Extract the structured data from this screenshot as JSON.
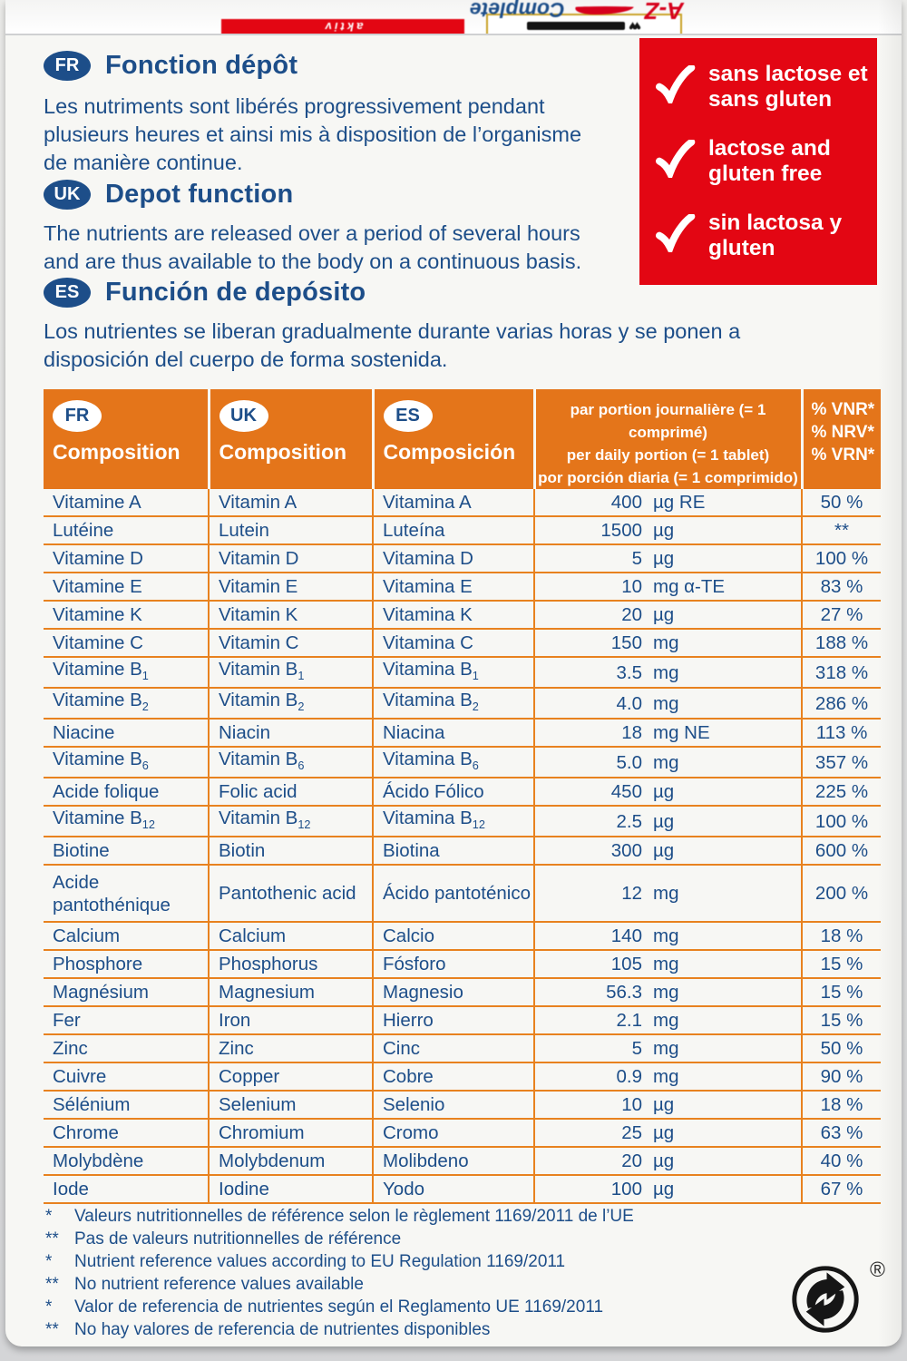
{
  "colors": {
    "orange_header": "#e4751a",
    "orange_line": "#e8821f",
    "text_blue": "#1d4e89",
    "claim_red": "#e30613",
    "logo_gold": "#c9a227",
    "panel_bg": "#f7f7f4"
  },
  "flap": {
    "az": "A-Z",
    "complete": "Complete",
    "aktiv": "aktiv",
    "hearts": "♥♥"
  },
  "sections": {
    "fr": {
      "badge": "FR",
      "title": "Fonction dépôt",
      "body": "Les nutriments sont libérés progressivement pendant\nplusieurs heures et ainsi mis à disposition de l’organisme\nde manière continue."
    },
    "uk": {
      "badge": "UK",
      "title": "Depot function",
      "body": "The nutrients are released over a period of several hours\nand are thus available to the body on a continuous basis."
    },
    "es": {
      "badge": "ES",
      "title": "Función de depósito",
      "body": "Los nutrientes se liberan gradualmente durante varias horas y se ponen a\ndisposición del cuerpo de forma sostenida."
    }
  },
  "claims": {
    "items": [
      "sans lactose et\nsans gluten",
      "lactose and\ngluten free",
      "sin lactosa y\ngluten"
    ]
  },
  "table": {
    "header": {
      "fr_badge": "FR",
      "fr_label": "Composition",
      "uk_badge": "UK",
      "uk_label": "Composition",
      "es_badge": "ES",
      "es_label": "Composición",
      "portion_lines": [
        "par portion journalière (= 1 comprimé)",
        "per daily portion (= 1 tablet)",
        "por porción diaria (= 1 comprimido)"
      ],
      "nrv_lines": [
        "% VNR*",
        "% NRV*",
        "% VRN*"
      ]
    },
    "rows": [
      {
        "fr": "Vitamine A",
        "uk": "Vitamin A",
        "es": "Vitamina A",
        "amount": "400",
        "unit": "µg RE",
        "nrv": "50 %"
      },
      {
        "fr": "Lutéine",
        "uk": "Lutein",
        "es": "Luteína",
        "amount": "1500",
        "unit": "µg",
        "nrv": "**"
      },
      {
        "fr": "Vitamine D",
        "uk": "Vitamin D",
        "es": "Vitamina D",
        "amount": "5",
        "unit": "µg",
        "nrv": "100 %"
      },
      {
        "fr": "Vitamine E",
        "uk": "Vitamin E",
        "es": "Vitamina E",
        "amount": "10",
        "unit": "mg α-TE",
        "nrv": "83 %"
      },
      {
        "fr": "Vitamine K",
        "uk": "Vitamin K",
        "es": "Vitamina K",
        "amount": "20",
        "unit": "µg",
        "nrv": "27 %"
      },
      {
        "fr": "Vitamine C",
        "uk": "Vitamin C",
        "es": "Vitamina C",
        "amount": "150",
        "unit": "mg",
        "nrv": "188 %"
      },
      {
        "fr": "Vitamine B",
        "frs": "1",
        "uk": "Vitamin B",
        "uks": "1",
        "es": "Vitamina B",
        "ess": "1",
        "amount": "3.5",
        "unit": "mg",
        "nrv": "318 %"
      },
      {
        "fr": "Vitamine B",
        "frs": "2",
        "uk": "Vitamin B",
        "uks": "2",
        "es": "Vitamina B",
        "ess": "2",
        "amount": "4.0",
        "unit": "mg",
        "nrv": "286 %"
      },
      {
        "fr": "Niacine",
        "uk": "Niacin",
        "es": "Niacina",
        "amount": "18",
        "unit": "mg NE",
        "nrv": "113 %"
      },
      {
        "fr": "Vitamine B",
        "frs": "6",
        "uk": "Vitamin B",
        "uks": "6",
        "es": "Vitamina B",
        "ess": "6",
        "amount": "5.0",
        "unit": "mg",
        "nrv": "357 %"
      },
      {
        "fr": "Acide folique",
        "uk": "Folic acid",
        "es": "Ácido Fólico",
        "amount": "450",
        "unit": "µg",
        "nrv": "225 %"
      },
      {
        "fr": "Vitamine B",
        "frs": "12",
        "uk": "Vitamin B",
        "uks": "12",
        "es": "Vitamina B",
        "ess": "12",
        "amount": "2.5",
        "unit": "µg",
        "nrv": "100 %"
      },
      {
        "fr": "Biotine",
        "uk": "Biotin",
        "es": "Biotina",
        "amount": "300",
        "unit": "µg",
        "nrv": "600 %"
      },
      {
        "fr": "Acide pantothénique",
        "uk": "Pantothenic acid",
        "es": "Ácido pantoténico",
        "amount": "12",
        "unit": "mg",
        "nrv": "200 %",
        "tall": true
      },
      {
        "fr": "Calcium",
        "uk": "Calcium",
        "es": "Calcio",
        "amount": "140",
        "unit": "mg",
        "nrv": "18 %"
      },
      {
        "fr": "Phosphore",
        "uk": "Phosphorus",
        "es": "Fósforo",
        "amount": "105",
        "unit": "mg",
        "nrv": "15 %"
      },
      {
        "fr": "Magnésium",
        "uk": "Magnesium",
        "es": "Magnesio",
        "amount": "56.3",
        "unit": "mg",
        "nrv": "15 %"
      },
      {
        "fr": "Fer",
        "uk": "Iron",
        "es": "Hierro",
        "amount": "2.1",
        "unit": "mg",
        "nrv": "15 %"
      },
      {
        "fr": "Zinc",
        "uk": "Zinc",
        "es": "Cinc",
        "amount": "5",
        "unit": "mg",
        "nrv": "50 %"
      },
      {
        "fr": "Cuivre",
        "uk": "Copper",
        "es": "Cobre",
        "amount": "0.9",
        "unit": "mg",
        "nrv": "90 %"
      },
      {
        "fr": "Sélénium",
        "uk": "Selenium",
        "es": "Selenio",
        "amount": "10",
        "unit": "µg",
        "nrv": "18 %"
      },
      {
        "fr": "Chrome",
        "uk": "Chromium",
        "es": "Cromo",
        "amount": "25",
        "unit": "µg",
        "nrv": "63 %"
      },
      {
        "fr": "Molybdène",
        "uk": "Molybdenum",
        "es": "Molibdeno",
        "amount": "20",
        "unit": "µg",
        "nrv": "40 %"
      },
      {
        "fr": "Iode",
        "uk": "Iodine",
        "es": "Yodo",
        "amount": "100",
        "unit": "µg",
        "nrv": "67 %"
      }
    ]
  },
  "footnotes": [
    {
      "marker": "*",
      "text": "Valeurs nutritionnelles de référence selon le règlement 1169/2011 de l’UE"
    },
    {
      "marker": "**",
      "text": "Pas de valeurs nutritionnelles de référence"
    },
    {
      "marker": "*",
      "text": "Nutrient reference values according to EU Regulation 1169/2011"
    },
    {
      "marker": "**",
      "text": "No nutrient reference values available"
    },
    {
      "marker": "*",
      "text": "Valor de referencia de nutrientes según el Reglamento UE 1169/2011"
    },
    {
      "marker": "**",
      "text": "No hay valores de referencia de nutrientes disponibles"
    }
  ],
  "recycling": {
    "registered": "®"
  }
}
